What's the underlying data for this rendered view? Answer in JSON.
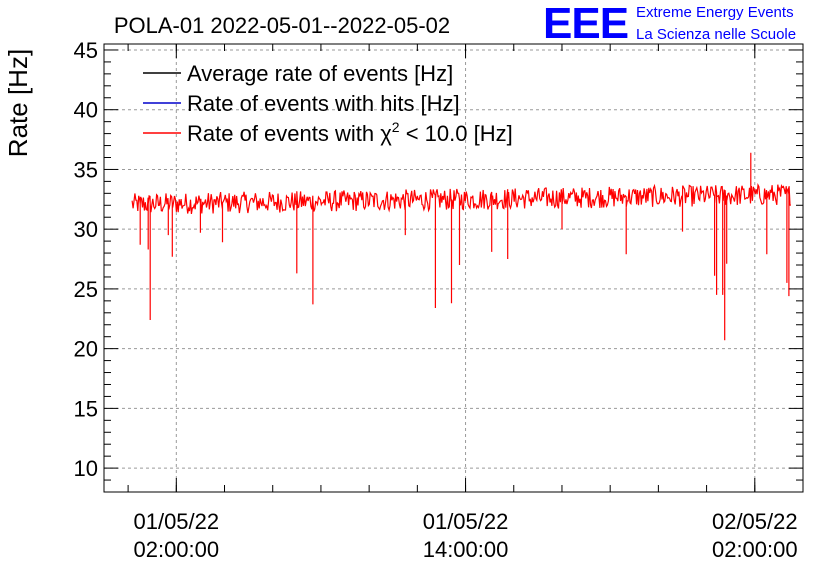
{
  "chart_data": {
    "type": "line",
    "title": "POLA-01 2022-05-01--2022-05-02",
    "ylabel": "Rate [Hz]",
    "xlabel": "",
    "ylim": [
      8,
      45.5
    ],
    "xlim": [
      "2022-04-30 23:00:00",
      "2022-05-02 04:00:00"
    ],
    "x_ticks": [
      {
        "date": "01/05/22",
        "time": "02:00:00",
        "x": "2022-05-01 02:00:00"
      },
      {
        "date": "01/05/22",
        "time": "14:00:00",
        "x": "2022-05-01 14:00:00"
      },
      {
        "date": "02/05/22",
        "time": "02:00:00",
        "x": "2022-05-02 02:00:00"
      }
    ],
    "y_ticks": [
      10,
      15,
      20,
      25,
      30,
      35,
      40,
      45
    ],
    "grid": true,
    "legend_position": "top-left",
    "legend": [
      {
        "label": "Average rate of events [Hz]",
        "color": "#000000"
      },
      {
        "label": "Rate of events with hits [Hz]",
        "color": "#0000cc"
      },
      {
        "label_prefix": "Rate of events with ",
        "symbol": "χ",
        "superscript": "2",
        "label_suffix": " < 10.0 [Hz]",
        "color": "#ff0000"
      }
    ],
    "series": [
      {
        "name": "Rate of events with χ2 < 10.0 [Hz]",
        "color": "#ff0000",
        "baseline_start": 32.1,
        "baseline_end": 32.9,
        "noise_amplitude": 0.9,
        "x_start": "2022-05-01 00:10:00",
        "x_end": "2022-05-02 03:30:00",
        "dips": [
          {
            "x": "2022-05-01 00:30:00",
            "y": 28.7
          },
          {
            "x": "2022-05-01 00:50:00",
            "y": 28.3
          },
          {
            "x": "2022-05-01 00:55:00",
            "y": 22.4
          },
          {
            "x": "2022-05-01 01:40:00",
            "y": 29.5
          },
          {
            "x": "2022-05-01 01:50:00",
            "y": 27.7
          },
          {
            "x": "2022-05-01 03:00:00",
            "y": 29.7
          },
          {
            "x": "2022-05-01 03:55:00",
            "y": 28.9
          },
          {
            "x": "2022-05-01 07:00:00",
            "y": 26.3
          },
          {
            "x": "2022-05-01 07:40:00",
            "y": 23.7
          },
          {
            "x": "2022-05-01 11:30:00",
            "y": 29.5
          },
          {
            "x": "2022-05-01 12:45:00",
            "y": 23.4
          },
          {
            "x": "2022-05-01 13:25:00",
            "y": 23.8
          },
          {
            "x": "2022-05-01 13:45:00",
            "y": 27.0
          },
          {
            "x": "2022-05-01 15:05:00",
            "y": 28.1
          },
          {
            "x": "2022-05-01 15:45:00",
            "y": 27.5
          },
          {
            "x": "2022-05-01 18:00:00",
            "y": 30.0
          },
          {
            "x": "2022-05-01 20:40:00",
            "y": 27.9
          },
          {
            "x": "2022-05-01 23:00:00",
            "y": 29.8
          },
          {
            "x": "2022-05-02 00:20:00",
            "y": 26.1
          },
          {
            "x": "2022-05-02 00:25:00",
            "y": 24.5
          },
          {
            "x": "2022-05-02 00:40:00",
            "y": 24.5
          },
          {
            "x": "2022-05-02 00:50:00",
            "y": 27.1
          },
          {
            "x": "2022-05-02 00:45:00",
            "y": 20.7
          },
          {
            "x": "2022-05-02 02:30:00",
            "y": 27.9
          },
          {
            "x": "2022-05-02 03:20:00",
            "y": 25.5
          },
          {
            "x": "2022-05-02 03:25:00",
            "y": 24.4
          }
        ],
        "spikes": [
          {
            "x": "2022-05-02 01:50:00",
            "y": 36.4
          }
        ]
      }
    ]
  },
  "logo": {
    "mark": "EEE",
    "line1": "Extreme Energy Events",
    "line2": "La Scienza nelle Scuole",
    "color": "#0000ff"
  }
}
